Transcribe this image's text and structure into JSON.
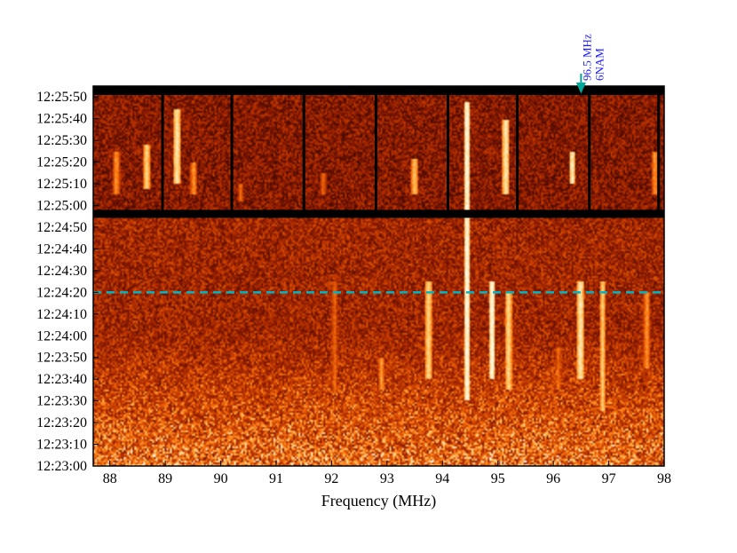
{
  "chart_data": {
    "type": "heatmap",
    "title": "",
    "xlabel": "Frequency (MHz)",
    "ylabel": "",
    "xlim": [
      87.7,
      98.0
    ],
    "x_ticks": [
      "88",
      "89",
      "90",
      "91",
      "92",
      "93",
      "94",
      "95",
      "96",
      "97",
      "98"
    ],
    "y_ticks": [
      "12:23:00",
      "12:23:10",
      "12:23:20",
      "12:23:30",
      "12:23:40",
      "12:23:50",
      "12:24:00",
      "12:24:10",
      "12:24:20",
      "12:24:30",
      "12:24:40",
      "12:24:50",
      "12:25:00",
      "12:25:10",
      "12:25:20",
      "12:25:30",
      "12:25:40",
      "12:25:50"
    ],
    "ylim": [
      "12:23:00",
      "12:25:55"
    ],
    "colormap": [
      "#000000",
      "#4a0a00",
      "#8b1a00",
      "#c43a00",
      "#ff7a10",
      "#ffd070",
      "#ffffff"
    ],
    "marker_line": {
      "time": "12:24:20",
      "color": "#00b5c8",
      "style": "dashed"
    },
    "annotation": {
      "frequency": 96.5,
      "label_line1": "96.5 MHz",
      "label_line2": "6NAM",
      "color": "#1a1aff",
      "arrow_color": "#00a89a"
    },
    "segment_boundaries_top": [
      88.95,
      90.2,
      91.5,
      92.8,
      94.1,
      95.35,
      96.65,
      97.9
    ],
    "bright_lines": [
      {
        "freq": 88.1,
        "from": "12:25:05",
        "to": "12:25:25",
        "intensity": 0.7
      },
      {
        "freq": 88.65,
        "from": "12:25:08",
        "to": "12:25:28",
        "intensity": 0.85
      },
      {
        "freq": 89.2,
        "from": "12:25:10",
        "to": "12:25:45",
        "intensity": 0.9
      },
      {
        "freq": 89.5,
        "from": "12:25:05",
        "to": "12:25:20",
        "intensity": 0.7
      },
      {
        "freq": 90.35,
        "from": "12:25:02",
        "to": "12:25:10",
        "intensity": 0.6
      },
      {
        "freq": 91.85,
        "from": "12:25:05",
        "to": "12:25:15",
        "intensity": 0.6
      },
      {
        "freq": 92.05,
        "from": "12:23:33",
        "to": "12:24:25",
        "intensity": 0.6
      },
      {
        "freq": 92.9,
        "from": "12:23:35",
        "to": "12:23:50",
        "intensity": 0.7
      },
      {
        "freq": 93.5,
        "from": "12:25:05",
        "to": "12:25:22",
        "intensity": 0.8
      },
      {
        "freq": 93.75,
        "from": "12:23:40",
        "to": "12:24:25",
        "intensity": 0.85
      },
      {
        "freq": 94.45,
        "from": "12:23:30",
        "to": "12:25:48",
        "intensity": 0.95
      },
      {
        "freq": 94.9,
        "from": "12:23:40",
        "to": "12:24:25",
        "intensity": 0.95
      },
      {
        "freq": 95.2,
        "from": "12:23:35",
        "to": "12:24:20",
        "intensity": 0.85
      },
      {
        "freq": 95.15,
        "from": "12:25:05",
        "to": "12:25:40",
        "intensity": 0.9
      },
      {
        "freq": 96.1,
        "from": "12:23:35",
        "to": "12:23:55",
        "intensity": 0.6
      },
      {
        "freq": 96.35,
        "from": "12:25:10",
        "to": "12:25:25",
        "intensity": 0.9
      },
      {
        "freq": 96.5,
        "from": "12:23:40",
        "to": "12:24:25",
        "intensity": 0.9
      },
      {
        "freq": 96.9,
        "from": "12:23:25",
        "to": "12:24:25",
        "intensity": 0.8
      },
      {
        "freq": 97.7,
        "from": "12:23:45",
        "to": "12:24:20",
        "intensity": 0.7
      },
      {
        "freq": 97.85,
        "from": "12:25:05",
        "to": "12:25:25",
        "intensity": 0.7
      }
    ]
  }
}
